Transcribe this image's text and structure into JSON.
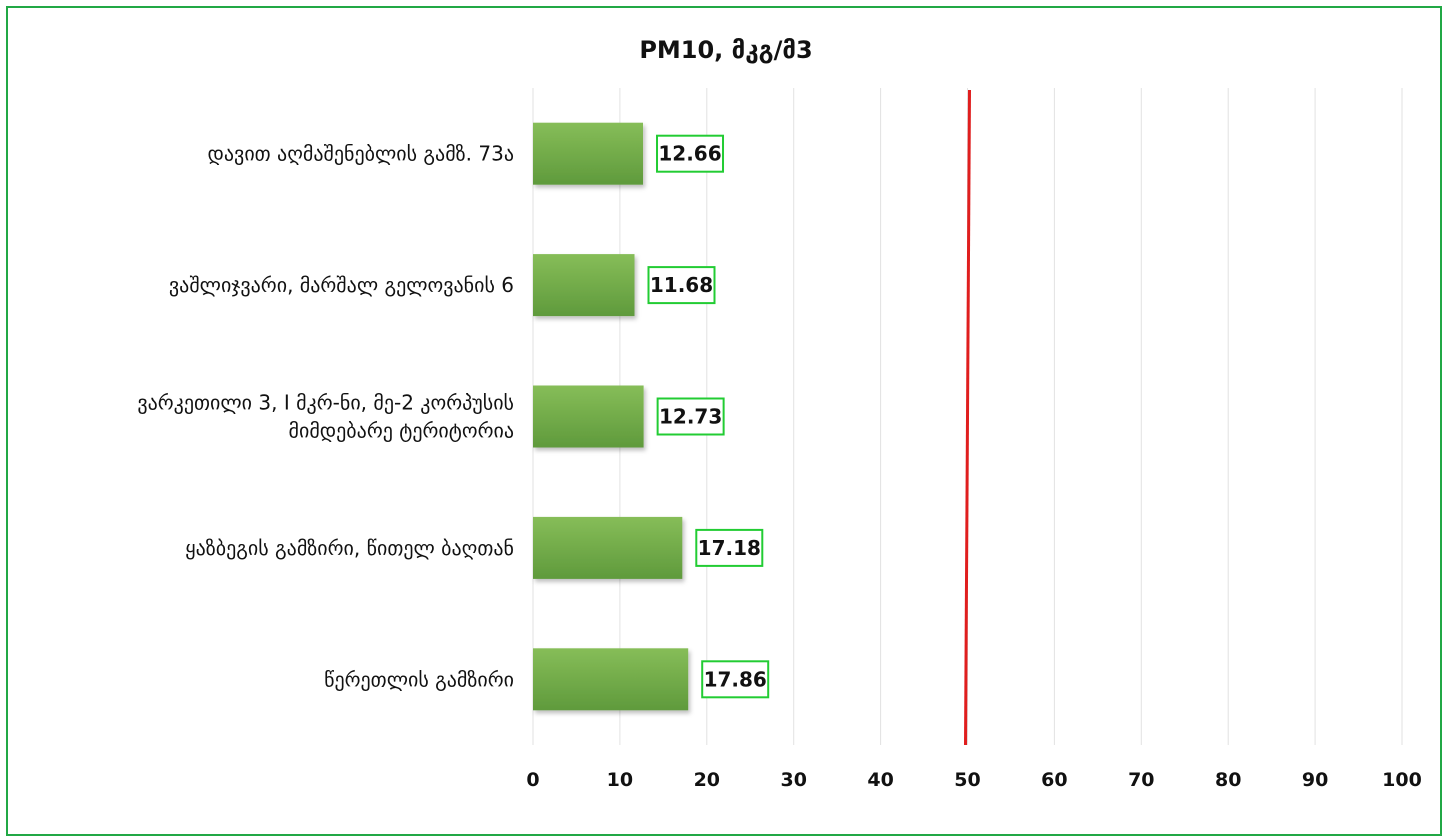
{
  "chart_data": {
    "type": "bar",
    "orientation": "horizontal",
    "title": "PM10, მკგ/მ3",
    "categories": [
      [
        "დავით აღმაშენებლის გამზ. 73ა"
      ],
      [
        "ვაშლიჯვარი, მარშალ გელოვანის 6"
      ],
      [
        "ვარკეთილი 3, I მკრ-ნი, მე-2 კორპუსის",
        "მიმდებარე ტერიტორია"
      ],
      [
        "ყაზბეგის გამზირი, წითელ ბაღთან"
      ],
      [
        "წერეთლის გამზირი"
      ]
    ],
    "values": [
      12.66,
      11.68,
      12.73,
      17.18,
      17.86
    ],
    "data_labels": [
      "12.66",
      "11.68",
      "12.73",
      "17.18",
      "17.86"
    ],
    "xlim": [
      0,
      100
    ],
    "xticks": [
      "0",
      "10",
      "20",
      "30",
      "40",
      "50",
      "60",
      "70",
      "80",
      "90",
      "100"
    ],
    "reference_line": 50,
    "grid": true,
    "colors": {
      "bar": "#71a949",
      "reference_line": "#e01e1e",
      "label_border": "#22cc33",
      "frame": "#21a845",
      "grid": "#e2e2e2"
    }
  }
}
